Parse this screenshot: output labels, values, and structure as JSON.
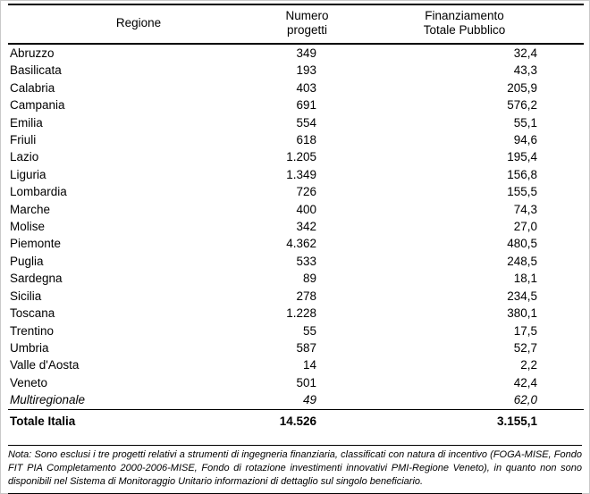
{
  "colors": {
    "text": "#000000",
    "rule": "#000000",
    "frame_border": "#c9c9c9",
    "background": "#ffffff"
  },
  "table": {
    "header": {
      "region": "Regione",
      "projects_line1": "Numero",
      "projects_line2": "progetti",
      "funding_line1": "Finanziamento",
      "funding_line2": "Totale Pubblico"
    },
    "rows": [
      {
        "region": "Abruzzo",
        "projects": "349",
        "funding": "32,4",
        "italic": false
      },
      {
        "region": "Basilicata",
        "projects": "193",
        "funding": "43,3",
        "italic": false
      },
      {
        "region": "Calabria",
        "projects": "403",
        "funding": "205,9",
        "italic": false
      },
      {
        "region": "Campania",
        "projects": "691",
        "funding": "576,2",
        "italic": false
      },
      {
        "region": "Emilia",
        "projects": "554",
        "funding": "55,1",
        "italic": false
      },
      {
        "region": "Friuli",
        "projects": "618",
        "funding": "94,6",
        "italic": false
      },
      {
        "region": "Lazio",
        "projects": "1.205",
        "funding": "195,4",
        "italic": false
      },
      {
        "region": "Liguria",
        "projects": "1.349",
        "funding": "156,8",
        "italic": false
      },
      {
        "region": "Lombardia",
        "projects": "726",
        "funding": "155,5",
        "italic": false
      },
      {
        "region": "Marche",
        "projects": "400",
        "funding": "74,3",
        "italic": false
      },
      {
        "region": "Molise",
        "projects": "342",
        "funding": "27,0",
        "italic": false
      },
      {
        "region": "Piemonte",
        "projects": "4.362",
        "funding": "480,5",
        "italic": false
      },
      {
        "region": "Puglia",
        "projects": "533",
        "funding": "248,5",
        "italic": false
      },
      {
        "region": "Sardegna",
        "projects": "89",
        "funding": "18,1",
        "italic": false
      },
      {
        "region": "Sicilia",
        "projects": "278",
        "funding": "234,5",
        "italic": false
      },
      {
        "region": "Toscana",
        "projects": "1.228",
        "funding": "380,1",
        "italic": false
      },
      {
        "region": "Trentino",
        "projects": "55",
        "funding": "17,5",
        "italic": false
      },
      {
        "region": "Umbria",
        "projects": "587",
        "funding": "52,7",
        "italic": false
      },
      {
        "region": "Valle d'Aosta",
        "projects": "14",
        "funding": "2,2",
        "italic": false
      },
      {
        "region": "Veneto",
        "projects": "501",
        "funding": "42,4",
        "italic": false
      },
      {
        "region": "Multiregionale",
        "projects": "49",
        "funding": "62,0",
        "italic": true
      }
    ],
    "total": {
      "label": "Totale Italia",
      "projects": "14.526",
      "funding": "3.155,1"
    }
  },
  "note": {
    "text": "Nota: Sono esclusi i tre progetti relativi a strumenti di ingegneria finanziaria, classificati con natura di incentivo (FOGA-MISE, Fondo FIT PIA Completamento 2000-2006-MISE, Fondo di rotazione investimenti innovativi PMI-Regione Veneto), in quanto non sono disponibili nel Sistema di Monitoraggio Unitario informazioni di dettaglio sul singolo beneficiario."
  }
}
